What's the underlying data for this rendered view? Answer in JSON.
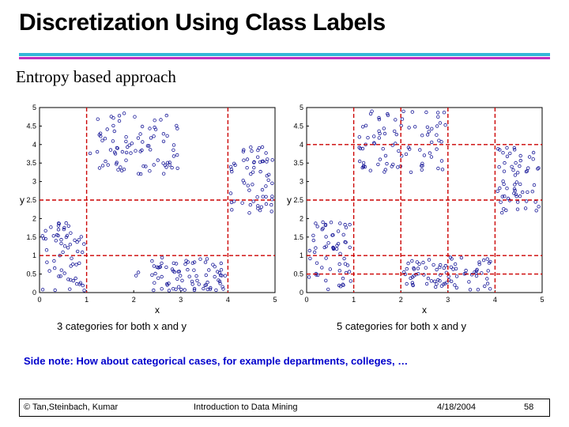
{
  "slide": {
    "title": "Discretization Using Class Labels",
    "subtitle": "Entropy based approach",
    "side_note": "Side note: How about categorical cases, for example departments, colleges, …",
    "colors": {
      "accent_cyan": "#33b8d8",
      "accent_magenta": "#c030c0",
      "points": "#1a1a99",
      "split_lines": "#cc0000"
    }
  },
  "footer": {
    "copyright": "© Tan,Steinbach, Kumar",
    "course": "Introduction to Data Mining",
    "date": "4/18/2004",
    "page": "58"
  },
  "chart_data": [
    {
      "type": "scatter",
      "caption": "3 categories for both x and y",
      "xlabel": "x",
      "ylabel": "y",
      "xlim": [
        0,
        5
      ],
      "ylim": [
        0,
        5
      ],
      "x_ticks": [
        "0",
        "1",
        "2",
        "3",
        "4",
        "5"
      ],
      "y_ticks": [
        "0",
        "0.5",
        "1",
        "1.5",
        "2",
        "2.5",
        "3",
        "3.5",
        "4",
        "4.5",
        "5"
      ],
      "x_splits": [
        1,
        4
      ],
      "y_splits": [
        1,
        2.5
      ],
      "marker": "o",
      "clusters": [
        {
          "name": "bottom-left",
          "x_range": [
            0.05,
            0.95
          ],
          "y_range": [
            0.05,
            1.95
          ],
          "count": 60
        },
        {
          "name": "top-middle",
          "x_range": [
            1.05,
            2.95
          ],
          "y_range": [
            3.2,
            4.9
          ],
          "count": 85
        },
        {
          "name": "bottom-middle",
          "x_range": [
            2.05,
            3.95
          ],
          "y_range": [
            0.05,
            0.95
          ],
          "count": 80
        },
        {
          "name": "right-middle",
          "x_range": [
            4.05,
            4.95
          ],
          "y_range": [
            2.1,
            3.95
          ],
          "count": 60
        }
      ]
    },
    {
      "type": "scatter",
      "caption": "5 categories for both x and y",
      "xlabel": "x",
      "ylabel": "y",
      "xlim": [
        0,
        5
      ],
      "ylim": [
        0,
        5
      ],
      "x_ticks": [
        "0",
        "1",
        "2",
        "3",
        "4",
        "5"
      ],
      "y_ticks": [
        "0",
        "0.5",
        "1",
        "1.5",
        "2",
        "2.5",
        "3",
        "3.5",
        "4",
        "4.5",
        "5"
      ],
      "x_splits": [
        1,
        2,
        3,
        4
      ],
      "y_splits": [
        0.5,
        1,
        2.5,
        4
      ],
      "marker": "o",
      "clusters": [
        {
          "name": "bottom-left",
          "x_range": [
            0.05,
            0.95
          ],
          "y_range": [
            0.05,
            1.95
          ],
          "count": 60
        },
        {
          "name": "top-middle",
          "x_range": [
            1.05,
            2.95
          ],
          "y_range": [
            3.2,
            4.9
          ],
          "count": 85
        },
        {
          "name": "bottom-middle",
          "x_range": [
            2.05,
            3.95
          ],
          "y_range": [
            0.05,
            0.95
          ],
          "count": 80
        },
        {
          "name": "right-middle",
          "x_range": [
            4.05,
            4.95
          ],
          "y_range": [
            2.1,
            3.95
          ],
          "count": 60
        }
      ]
    }
  ]
}
